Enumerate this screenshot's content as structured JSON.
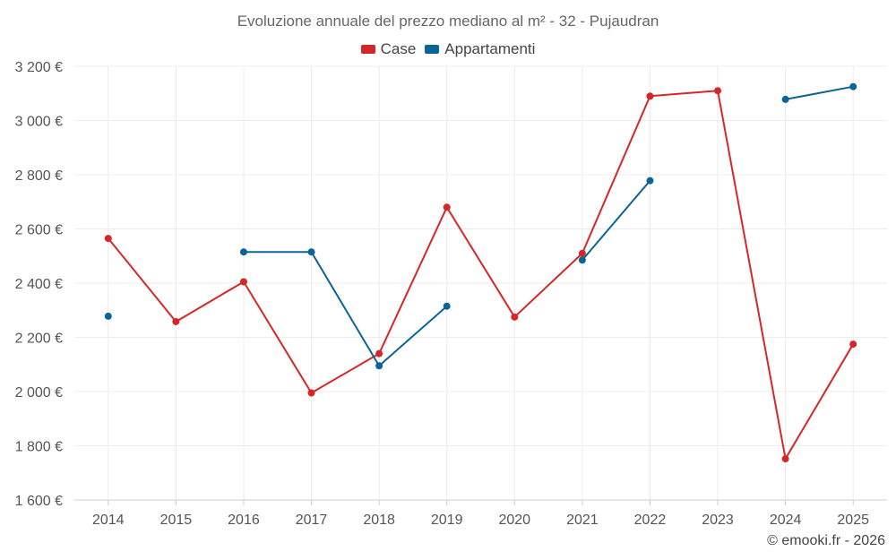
{
  "chart_data": {
    "type": "line",
    "title": "Evoluzione annuale del prezzo mediano al m² - 32 - Pujaudran",
    "categories": [
      "2014",
      "2015",
      "2016",
      "2017",
      "2018",
      "2019",
      "2020",
      "2021",
      "2022",
      "2023",
      "2024",
      "2025"
    ],
    "series": [
      {
        "name": "Case",
        "color": "#d62728",
        "values": [
          2565,
          2258,
          2405,
          1995,
          2140,
          2680,
          2275,
          2510,
          3090,
          3110,
          1752,
          2175
        ]
      },
      {
        "name": "Appartamenti",
        "color": "#0a6496",
        "values": [
          2278,
          null,
          2515,
          2515,
          2095,
          2315,
          null,
          2485,
          2778,
          null,
          3078,
          3125
        ]
      }
    ],
    "ylim": [
      1600,
      3200
    ],
    "yticks": [
      1600,
      1800,
      2000,
      2200,
      2400,
      2600,
      2800,
      3000,
      3200
    ],
    "ytick_labels": [
      "1 600 €",
      "1 800 €",
      "2 000 €",
      "2 200 €",
      "2 400 €",
      "2 600 €",
      "2 800 €",
      "3 000 €",
      "3 200 €"
    ],
    "xlabel": "",
    "ylabel": "",
    "grid": true,
    "legend_position": "top-center"
  },
  "credit": "© emooki.fr - 2026"
}
